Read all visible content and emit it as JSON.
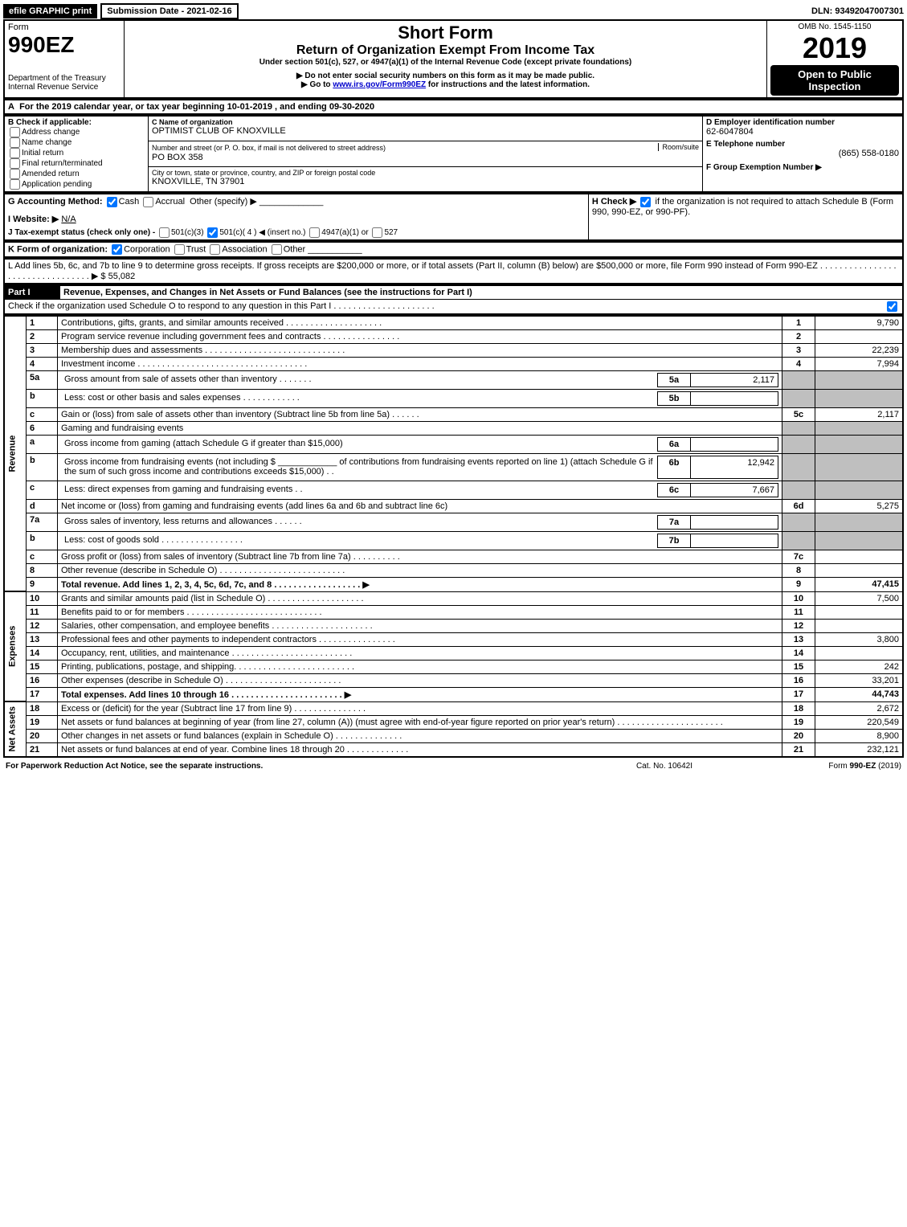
{
  "topbar": {
    "efile": "efile GRAPHIC print",
    "submission_btn": "Submission Date - 2021-02-16",
    "dln": "DLN: 93492047007301"
  },
  "header": {
    "form_word": "Form",
    "form_no": "990EZ",
    "dept1": "Department of the Treasury",
    "dept2": "Internal Revenue Service",
    "title": "Short Form",
    "subtitle": "Return of Organization Exempt From Income Tax",
    "under": "Under section 501(c), 527, or 4947(a)(1) of the Internal Revenue Code (except private foundations)",
    "warn": "▶ Do not enter social security numbers on this form as it may be made public.",
    "goto_pre": "▶ Go to ",
    "goto_link": "www.irs.gov/Form990EZ",
    "goto_post": " for instructions and the latest information.",
    "omb": "OMB No. 1545-1150",
    "year": "2019",
    "open": "Open to Public Inspection"
  },
  "lineA": "For the 2019 calendar year, or tax year beginning 10-01-2019 , and ending 09-30-2020",
  "boxB": {
    "label": "B  Check if applicable:",
    "opts": [
      "Address change",
      "Name change",
      "Initial return",
      "Final return/terminated",
      "Amended return",
      "Application pending"
    ]
  },
  "boxC": {
    "c_label": "C Name of organization",
    "c_val": "OPTIMIST CLUB OF KNOXVILLE",
    "addr_label": "Number and street (or P. O. box, if mail is not delivered to street address)",
    "room": "Room/suite",
    "addr_val": "PO BOX 358",
    "city_label": "City or town, state or province, country, and ZIP or foreign postal code",
    "city_val": "KNOXVILLE, TN  37901"
  },
  "boxD": {
    "label": "D Employer identification number",
    "val": "62-6047804"
  },
  "boxE": {
    "label": "E Telephone number",
    "val": "(865) 558-0180"
  },
  "boxF": {
    "label": "F Group Exemption Number  ▶",
    "val": ""
  },
  "lineG": {
    "label": "G Accounting Method:",
    "cash": "Cash",
    "accrual": "Accrual",
    "other": "Other (specify) ▶"
  },
  "lineH": {
    "label": "H  Check ▶",
    "text": " if the organization is not required to attach Schedule B (Form 990, 990-EZ, or 990-PF)."
  },
  "lineI": {
    "label": "I Website: ▶",
    "val": "N/A"
  },
  "lineJ": {
    "label": "J Tax-exempt status (check only one) - ",
    "o1": "501(c)(3)",
    "o2": "501(c)( 4 ) ◀ (insert no.)",
    "o3": "4947(a)(1) or",
    "o4": "527"
  },
  "lineK": {
    "label": "K Form of organization:",
    "opts": [
      "Corporation",
      "Trust",
      "Association",
      "Other"
    ]
  },
  "lineL": {
    "text": "L Add lines 5b, 6c, and 7b to line 9 to determine gross receipts. If gross receipts are $200,000 or more, or if total assets (Part II, column (B) below) are $500,000 or more, file Form 990 instead of Form 990-EZ . . . . . . . . . . . . . . . . . . . . . . . . . . . . . . . . . ▶ $ ",
    "val": "55,082"
  },
  "part1_title": "Revenue, Expenses, and Changes in Net Assets or Fund Balances (see the instructions for Part I)",
  "part1_check": "Check if the organization used Schedule O to respond to any question in this Part I  . . . . . . . . . . . . . . . . . . . . .",
  "sections": {
    "revenue": "Revenue",
    "expenses": "Expenses",
    "netassets": "Net Assets"
  },
  "rows": [
    {
      "sec": "rev",
      "n": "1",
      "d": "Contributions, gifts, grants, and similar amounts received  . . . . . . . . . . . . . . . . . . . .",
      "k": "1",
      "v": "9,790"
    },
    {
      "sec": "rev",
      "n": "2",
      "d": "Program service revenue including government fees and contracts  . . . . . . . . . . . . . . . .",
      "k": "2",
      "v": ""
    },
    {
      "sec": "rev",
      "n": "3",
      "d": "Membership dues and assessments  . . . . . . . . . . . . . . . . . . . . . . . . . . . . .",
      "k": "3",
      "v": "22,239"
    },
    {
      "sec": "rev",
      "n": "4",
      "d": "Investment income  . . . . . . . . . . . . . . . . . . . . . . . . . . . . . . . . . . .",
      "k": "4",
      "v": "7,994"
    },
    {
      "sec": "rev",
      "n": "5a",
      "d": "Gross amount from sale of assets other than inventory  . . . . . . .",
      "sub": "5a",
      "subv": "2,117"
    },
    {
      "sec": "rev",
      "n": "b",
      "d": "Less: cost or other basis and sales expenses  . . . . . . . . . . . .",
      "sub": "5b",
      "subv": ""
    },
    {
      "sec": "rev",
      "n": "c",
      "d": "Gain or (loss) from sale of assets other than inventory (Subtract line 5b from line 5a)  . . . . . .",
      "k": "5c",
      "v": "2,117"
    },
    {
      "sec": "rev",
      "n": "6",
      "d": "Gaming and fundraising events"
    },
    {
      "sec": "rev",
      "n": "a",
      "d": "Gross income from gaming (attach Schedule G if greater than $15,000)",
      "sub": "6a",
      "subv": ""
    },
    {
      "sec": "rev",
      "n": "b",
      "d": "Gross income from fundraising events (not including $ ____________ of contributions from fundraising events reported on line 1) (attach Schedule G if the sum of such gross income and contributions exceeds $15,000)   . .",
      "sub": "6b",
      "subv": "12,942"
    },
    {
      "sec": "rev",
      "n": "c",
      "d": "Less: direct expenses from gaming and fundraising events   . .",
      "sub": "6c",
      "subv": "7,667"
    },
    {
      "sec": "rev",
      "n": "d",
      "d": "Net income or (loss) from gaming and fundraising events (add lines 6a and 6b and subtract line 6c)",
      "k": "6d",
      "v": "5,275"
    },
    {
      "sec": "rev",
      "n": "7a",
      "d": "Gross sales of inventory, less returns and allowances  . . . . . .",
      "sub": "7a",
      "subv": ""
    },
    {
      "sec": "rev",
      "n": "b",
      "d": "Less: cost of goods sold   . . . . . . . . . . . . . . . . .",
      "sub": "7b",
      "subv": ""
    },
    {
      "sec": "rev",
      "n": "c",
      "d": "Gross profit or (loss) from sales of inventory (Subtract line 7b from line 7a)  . . . . . . . . . .",
      "k": "7c",
      "v": ""
    },
    {
      "sec": "rev",
      "n": "8",
      "d": "Other revenue (describe in Schedule O) . . . . . . . . . . . . . . . . . . . . . . . . . .",
      "k": "8",
      "v": ""
    },
    {
      "sec": "rev",
      "n": "9",
      "d": "Total revenue. Add lines 1, 2, 3, 4, 5c, 6d, 7c, and 8  . . . . . . . . . . . . . . . . . .   ▶",
      "k": "9",
      "v": "47,415",
      "bold": true
    },
    {
      "sec": "exp",
      "n": "10",
      "d": "Grants and similar amounts paid (list in Schedule O)  . . . . . . . . . . . . . . . . . . . .",
      "k": "10",
      "v": "7,500"
    },
    {
      "sec": "exp",
      "n": "11",
      "d": "Benefits paid to or for members   . . . . . . . . . . . . . . . . . . . . . . . . . . . .",
      "k": "11",
      "v": ""
    },
    {
      "sec": "exp",
      "n": "12",
      "d": "Salaries, other compensation, and employee benefits . . . . . . . . . . . . . . . . . . . . .",
      "k": "12",
      "v": ""
    },
    {
      "sec": "exp",
      "n": "13",
      "d": "Professional fees and other payments to independent contractors . . . . . . . . . . . . . . . .",
      "k": "13",
      "v": "3,800"
    },
    {
      "sec": "exp",
      "n": "14",
      "d": "Occupancy, rent, utilities, and maintenance . . . . . . . . . . . . . . . . . . . . . . . . .",
      "k": "14",
      "v": ""
    },
    {
      "sec": "exp",
      "n": "15",
      "d": "Printing, publications, postage, and shipping. . . . . . . . . . . . . . . . . . . . . . . . .",
      "k": "15",
      "v": "242"
    },
    {
      "sec": "exp",
      "n": "16",
      "d": "Other expenses (describe in Schedule O)   . . . . . . . . . . . . . . . . . . . . . . . .",
      "k": "16",
      "v": "33,201"
    },
    {
      "sec": "exp",
      "n": "17",
      "d": "Total expenses. Add lines 10 through 16   . . . . . . . . . . . . . . . . . . . . . . .   ▶",
      "k": "17",
      "v": "44,743",
      "bold": true
    },
    {
      "sec": "na",
      "n": "18",
      "d": "Excess or (deficit) for the year (Subtract line 17 from line 9)   . . . . . . . . . . . . . . .",
      "k": "18",
      "v": "2,672"
    },
    {
      "sec": "na",
      "n": "19",
      "d": "Net assets or fund balances at beginning of year (from line 27, column (A)) (must agree with end-of-year figure reported on prior year's return) . . . . . . . . . . . . . . . . . . . . . .",
      "k": "19",
      "v": "220,549"
    },
    {
      "sec": "na",
      "n": "20",
      "d": "Other changes in net assets or fund balances (explain in Schedule O) . . . . . . . . . . . . . .",
      "k": "20",
      "v": "8,900"
    },
    {
      "sec": "na",
      "n": "21",
      "d": "Net assets or fund balances at end of year. Combine lines 18 through 20 . . . . . . . . . . . . .",
      "k": "21",
      "v": "232,121"
    }
  ],
  "footer": {
    "left": "For Paperwork Reduction Act Notice, see the separate instructions.",
    "mid": "Cat. No. 10642I",
    "right_pre": "Form ",
    "right_form": "990-EZ",
    "right_post": " (2019)"
  },
  "part1_label": "Part I"
}
